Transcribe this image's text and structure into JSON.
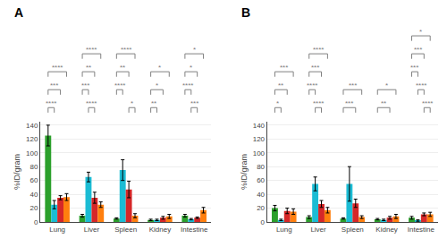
{
  "chart_data": [
    {
      "type": "bar",
      "title": "A",
      "categories": [
        "Lung",
        "Liver",
        "Spleen",
        "Kidney",
        "Intestine"
      ],
      "series": [
        {
          "color": "#2ca02c",
          "values": [
            125,
            9,
            5,
            3,
            9
          ],
          "errors": [
            15,
            2,
            1,
            1,
            2
          ]
        },
        {
          "color": "#1bbcd4",
          "values": [
            25,
            65,
            75,
            3,
            4
          ],
          "errors": [
            6,
            7,
            15,
            1,
            1
          ]
        },
        {
          "color": "#d62728",
          "values": [
            35,
            35,
            47,
            6,
            6
          ],
          "errors": [
            3,
            8,
            12,
            2,
            1
          ]
        },
        {
          "color": "#ff7f0e",
          "values": [
            36,
            25,
            9,
            8,
            17
          ],
          "errors": [
            5,
            4,
            3,
            3,
            4
          ]
        }
      ],
      "ylim": [
        0,
        145
      ],
      "yticks": [
        0,
        20,
        40,
        60,
        80,
        100,
        120,
        140
      ],
      "ylabel": "%ID/gram",
      "brackets": [
        {
          "category": "Lung",
          "text": "****",
          "from": 0,
          "to": 3
        },
        {
          "category": "Lung",
          "text": "***",
          "from": 0,
          "to": 2
        },
        {
          "category": "Lung",
          "text": "****",
          "from": 0,
          "to": 1
        },
        {
          "category": "Liver",
          "text": "****",
          "from": 0,
          "to": 3
        },
        {
          "category": "Liver",
          "text": "**",
          "from": 0,
          "to": 2
        },
        {
          "category": "Liver",
          "text": "***",
          "from": 0,
          "to": 1
        },
        {
          "category": "Liver",
          "text": "****",
          "from": 1,
          "to": 2
        },
        {
          "category": "Spleen",
          "text": "****",
          "from": 0,
          "to": 3
        },
        {
          "category": "Spleen",
          "text": "**",
          "from": 0,
          "to": 2
        },
        {
          "category": "Spleen",
          "text": "****",
          "from": 0,
          "to": 1
        },
        {
          "category": "Spleen",
          "text": "*",
          "from": 2,
          "to": 3
        },
        {
          "category": "Kidney",
          "text": "*",
          "from": 0,
          "to": 3
        },
        {
          "category": "Kidney",
          "text": "*",
          "from": 0,
          "to": 2
        },
        {
          "category": "Kidney",
          "text": "**",
          "from": 0,
          "to": 1
        },
        {
          "category": "Intestine",
          "text": "*",
          "from": 0,
          "to": 3
        },
        {
          "category": "Intestine",
          "text": "*",
          "from": 0,
          "to": 2
        },
        {
          "category": "Intestine",
          "text": "****",
          "from": 0,
          "to": 1
        },
        {
          "category": "Intestine",
          "text": "***",
          "from": 1,
          "to": 2
        }
      ]
    },
    {
      "type": "bar",
      "title": "B",
      "categories": [
        "Lung",
        "Liver",
        "Spleen",
        "Kidney",
        "Intestine"
      ],
      "series": [
        {
          "color": "#2ca02c",
          "values": [
            20,
            7,
            5,
            4,
            6
          ],
          "errors": [
            4,
            2,
            1,
            1,
            2
          ]
        },
        {
          "color": "#1bbcd4",
          "values": [
            3,
            55,
            55,
            3,
            2
          ],
          "errors": [
            1,
            10,
            25,
            1,
            1
          ]
        },
        {
          "color": "#d62728",
          "values": [
            16,
            26,
            27,
            6,
            11
          ],
          "errors": [
            4,
            5,
            6,
            2,
            2
          ]
        },
        {
          "color": "#ff7f0e",
          "values": [
            15,
            17,
            7,
            8,
            11
          ],
          "errors": [
            4,
            4,
            2,
            3,
            3
          ]
        }
      ],
      "ylim": [
        0,
        145
      ],
      "yticks": [
        0,
        20,
        40,
        60,
        80,
        100,
        120,
        140
      ],
      "ylabel": "%ID/gram",
      "brackets": [
        {
          "category": "Lung",
          "text": "***",
          "from": 0,
          "to": 3
        },
        {
          "category": "Lung",
          "text": "**",
          "from": 0,
          "to": 2
        },
        {
          "category": "Lung",
          "text": "*",
          "from": 0,
          "to": 1
        },
        {
          "category": "Liver",
          "text": "****",
          "from": 0,
          "to": 3
        },
        {
          "category": "Liver",
          "text": "***",
          "from": 0,
          "to": 2
        },
        {
          "category": "Liver",
          "text": "****",
          "from": 0,
          "to": 1
        },
        {
          "category": "Liver",
          "text": "****",
          "from": 1,
          "to": 2
        },
        {
          "category": "Spleen",
          "text": "***",
          "from": 0,
          "to": 3
        },
        {
          "category": "Spleen",
          "text": "***",
          "from": 0,
          "to": 2
        },
        {
          "category": "Kidney",
          "text": "*",
          "from": 0,
          "to": 3
        },
        {
          "category": "Kidney",
          "text": "**",
          "from": 0,
          "to": 2
        },
        {
          "category": "Intestine",
          "text": "*",
          "from": 0,
          "to": 3
        },
        {
          "category": "Intestine",
          "text": "***",
          "from": 0,
          "to": 2
        },
        {
          "category": "Intestine",
          "text": "***",
          "from": 0,
          "to": 1
        },
        {
          "category": "Intestine",
          "text": "****",
          "from": 1,
          "to": 2
        },
        {
          "category": "Intestine",
          "text": "****",
          "from": 2,
          "to": 3
        }
      ]
    }
  ]
}
